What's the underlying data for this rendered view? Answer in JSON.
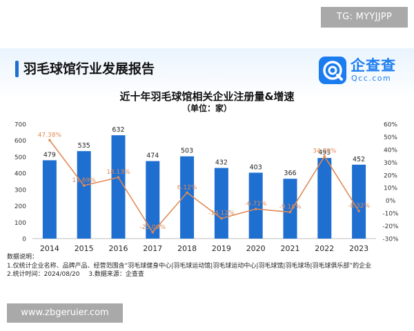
{
  "watermark_top": "TG: MYYJJPP",
  "watermark_bottom": "www.zbgeruier.com",
  "report_title": "羽毛球馆行业发展报告",
  "logo": {
    "name": "企查查",
    "subtitle": "Qcc.com"
  },
  "colors": {
    "bar": "#1f6fd1",
    "line": "#e08a56",
    "accent": "#1f6fd1",
    "logo": "#1b7cf0"
  },
  "chart_data": {
    "type": "bar",
    "title": "近十年羽毛球馆相关企业注册量&增速",
    "subtitle": "（单位：家）",
    "categories": [
      "2014",
      "2015",
      "2016",
      "2017",
      "2018",
      "2019",
      "2020",
      "2021",
      "2022",
      "2023"
    ],
    "series": [
      {
        "type": "bar",
        "axis": "left",
        "values": [
          479,
          535,
          632,
          474,
          503,
          432,
          403,
          366,
          493,
          452
        ]
      },
      {
        "type": "line",
        "axis": "right",
        "values": [
          47.38,
          11.69,
          18.13,
          -25.0,
          6.12,
          -14.12,
          -6.71,
          -9.18,
          34.7,
          -8.32
        ],
        "labels": [
          "47.38%",
          "11.69%",
          "18.13%",
          "-25.00%",
          "6.12%",
          "-14.12%",
          "-6.71%",
          "-9.18%",
          "34.70%",
          "-8.32%"
        ]
      }
    ],
    "y_left": {
      "min": 0,
      "max": 700,
      "ticks": [
        "0",
        "100",
        "200",
        "300",
        "400",
        "500",
        "600",
        "700"
      ]
    },
    "y_right": {
      "min": -30,
      "max": 60,
      "ticks": [
        "-30%",
        "-20%",
        "-10%",
        "0%",
        "10%",
        "20%",
        "30%",
        "40%",
        "50%",
        "60%"
      ]
    },
    "grid": false,
    "legend": "none"
  },
  "notes": {
    "header": "数据说明：",
    "line1": "1.仅统计企业名称、品牌产品、经营范围含“羽毛球健身中心|羽毛球运动馆|羽毛球运动中心|羽毛球馆|羽毛球场|羽毛球俱乐部”的企业",
    "line2a": "2.统计时间：2024/08/20",
    "line2b": "3.数据来源：企查查"
  }
}
